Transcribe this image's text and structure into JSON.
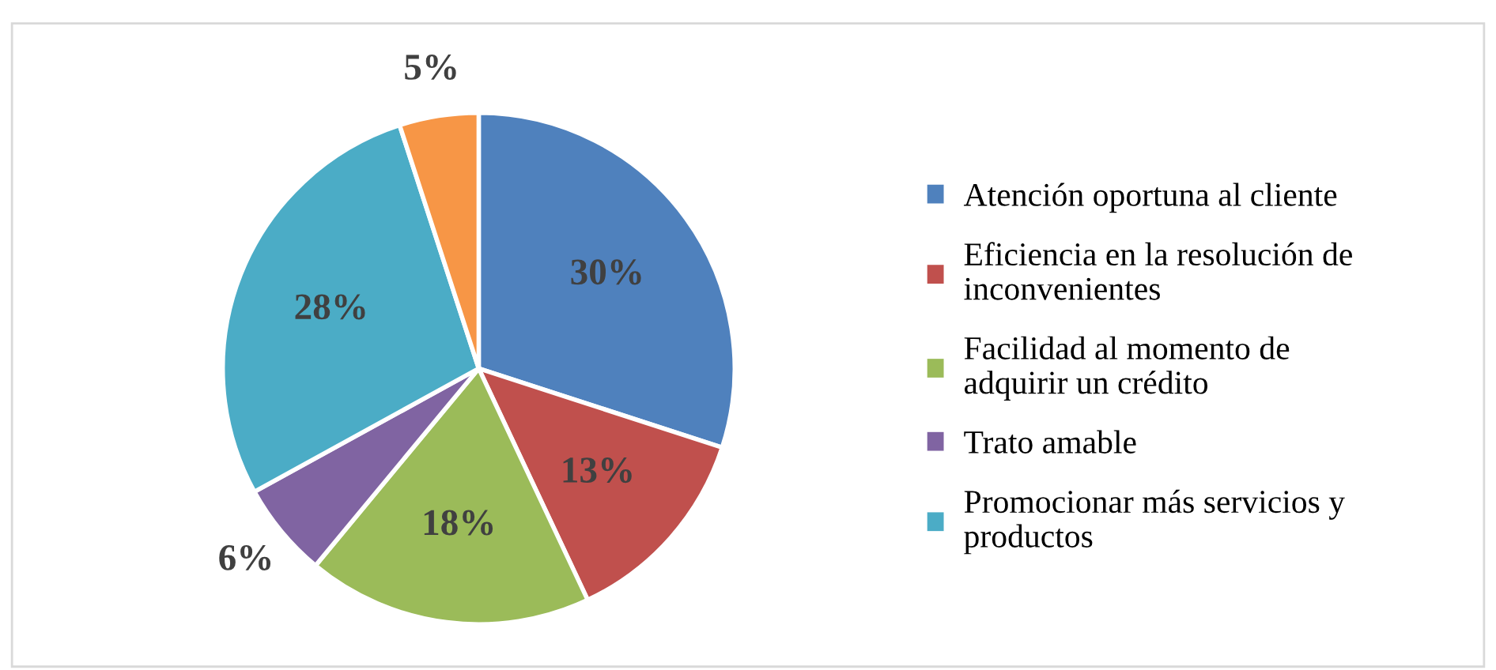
{
  "chart_data": {
    "type": "pie",
    "categories": [
      "Atención oportuna al cliente",
      "Eficiencia en la resolución de\ninconvenientes",
      "Facilidad al momento de\nadquirir un crédito",
      "Trato amable",
      "Promocionar más servicios y\nproductos",
      null
    ],
    "values": [
      30,
      13,
      18,
      6,
      28,
      5
    ],
    "colors": [
      "#4f81bd",
      "#c0504d",
      "#9bbb59",
      "#8064a2",
      "#4bacc6",
      "#f79646"
    ],
    "value_labels": [
      "30%",
      "13%",
      "18%",
      "6%",
      "28%",
      "5%"
    ],
    "legend": "right"
  }
}
